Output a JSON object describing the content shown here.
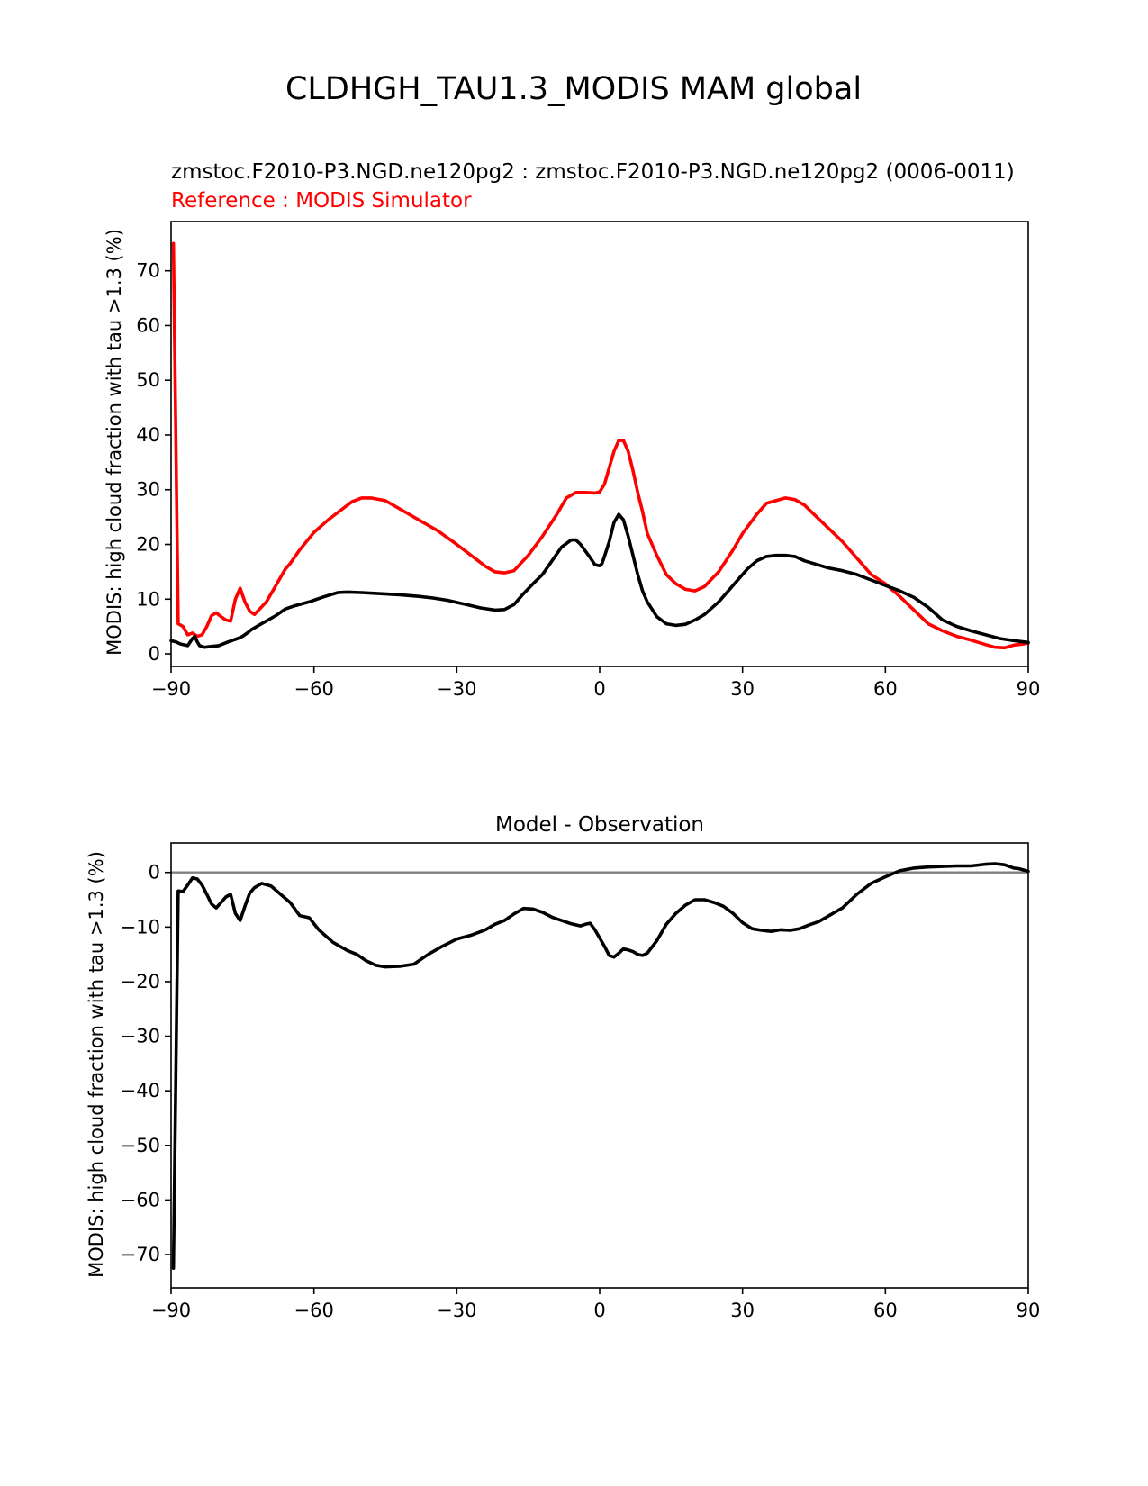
{
  "figure": {
    "title": "CLDHGH_TAU1.3_MODIS MAM global"
  },
  "chart_data": [
    {
      "type": "line",
      "test_label": "zmstoc.F2010-P3.NGD.ne120pg2 : zmstoc.F2010-P3.NGD.ne120pg2 (0006-0011)",
      "ref_label": "Reference : MODIS Simulator",
      "xlabel": "",
      "ylabel": "MODIS: high cloud fraction with tau >1.3 (%)",
      "xlim": [
        -90,
        90
      ],
      "ylim": [
        -2.3,
        79
      ],
      "xticks": [
        -90,
        -60,
        -30,
        0,
        30,
        60,
        90
      ],
      "xtick_labels": [
        "−90",
        "−60",
        "−30",
        "0",
        "30",
        "60",
        "90"
      ],
      "yticks": [
        0,
        10,
        20,
        30,
        40,
        50,
        60,
        70
      ],
      "ytick_labels": [
        "0",
        "10",
        "20",
        "30",
        "40",
        "50",
        "60",
        "70"
      ],
      "series": [
        {
          "name": "Reference",
          "color": "#ff0000",
          "x": [
            -89.5,
            -88.5,
            -87.5,
            -86.5,
            -85.5,
            -84.5,
            -83.5,
            -82.5,
            -81.5,
            -80.5,
            -79.5,
            -78.5,
            -77.5,
            -76.5,
            -75.5,
            -74.5,
            -73.5,
            -72.5,
            -70,
            -68,
            -66,
            -65,
            -63,
            -60,
            -57,
            -54,
            -52,
            -50,
            -48,
            -45,
            -42,
            -38,
            -34,
            -30,
            -27,
            -24,
            -22,
            -20,
            -18,
            -15,
            -12,
            -9,
            -7,
            -5,
            -3,
            -1,
            0,
            1,
            2,
            3,
            4,
            5,
            6,
            7,
            8,
            9,
            10,
            12,
            14,
            16,
            18,
            20,
            22,
            25,
            28,
            30,
            33,
            35,
            37,
            39,
            41,
            43,
            45,
            48,
            51,
            54,
            57,
            60,
            63,
            66,
            69,
            72,
            75,
            78,
            81,
            83,
            85,
            87,
            89,
            90
          ],
          "y": [
            75,
            5.5,
            5,
            3.5,
            3.8,
            3.2,
            3.5,
            5,
            7,
            7.5,
            6.8,
            6.2,
            6,
            10,
            12,
            9.5,
            7.8,
            7.2,
            9.5,
            12.5,
            15.5,
            16.5,
            19,
            22.2,
            24.5,
            26.5,
            27.8,
            28.5,
            28.5,
            28,
            26.5,
            24.5,
            22.5,
            20,
            18,
            16,
            15,
            14.8,
            15.2,
            18,
            21.5,
            25.5,
            28.5,
            29.5,
            29.5,
            29.4,
            29.6,
            31,
            34,
            37,
            39,
            39,
            37,
            33.5,
            29.5,
            26,
            22,
            18,
            14.5,
            12.8,
            11.8,
            11.5,
            12.3,
            15,
            19,
            22,
            25.5,
            27.5,
            28,
            28.5,
            28.2,
            27.2,
            25.5,
            23,
            20.5,
            17.5,
            14.5,
            12.8,
            10.5,
            8,
            5.5,
            4.2,
            3.2,
            2.5,
            1.7,
            1.2,
            1.1,
            1.6,
            1.8,
            2
          ]
        },
        {
          "name": "Test",
          "color": "#000000",
          "x": [
            -90,
            -89,
            -88,
            -86.5,
            -85.5,
            -85,
            -84.5,
            -84,
            -83,
            -82,
            -80,
            -78,
            -76,
            -75,
            -74,
            -73,
            -71,
            -68,
            -66,
            -64,
            -61,
            -58,
            -55,
            -53,
            -50,
            -46,
            -42,
            -38,
            -35,
            -32,
            -28,
            -25,
            -22,
            -20,
            -18,
            -16,
            -14,
            -12,
            -10,
            -8,
            -6,
            -5,
            -4,
            -3,
            -2,
            -1,
            0,
            0.5,
            1,
            2,
            3,
            4,
            5,
            6,
            7,
            8,
            9,
            10,
            12,
            14,
            16,
            18,
            20,
            22,
            25,
            28,
            31,
            33,
            35,
            37,
            39,
            41,
            43,
            45,
            48,
            51,
            54,
            57,
            60,
            63,
            66,
            69,
            72,
            75,
            78,
            81,
            84,
            87,
            90
          ],
          "y": [
            2.4,
            2.2,
            1.8,
            1.5,
            2.8,
            3.2,
            2.2,
            1.5,
            1.2,
            1.3,
            1.5,
            2.2,
            2.8,
            3.2,
            3.8,
            4.5,
            5.5,
            7,
            8.2,
            8.8,
            9.5,
            10.4,
            11.2,
            11.3,
            11.2,
            11,
            10.8,
            10.5,
            10.2,
            9.8,
            9,
            8.4,
            8,
            8.1,
            9,
            11,
            12.8,
            14.5,
            17,
            19.5,
            20.8,
            20.8,
            20,
            18.8,
            17.6,
            16.3,
            16.1,
            16.5,
            17.8,
            20.5,
            24,
            25.5,
            24.5,
            21.5,
            18,
            14.5,
            11.5,
            9.5,
            6.8,
            5.5,
            5.2,
            5.4,
            6.2,
            7.2,
            9.5,
            12.5,
            15.5,
            17,
            17.8,
            18,
            18,
            17.8,
            17,
            16.5,
            15.7,
            15.2,
            14.5,
            13.5,
            12.5,
            11.5,
            10.3,
            8.5,
            6.2,
            5,
            4.2,
            3.5,
            2.8,
            2.4,
            2.1
          ]
        }
      ]
    },
    {
      "type": "line",
      "title": "Model - Observation",
      "xlabel": "",
      "ylabel": "MODIS: high cloud fraction with tau >1.3 (%)",
      "xlim": [
        -90,
        90
      ],
      "ylim": [
        -76.1,
        5.4
      ],
      "xticks": [
        -90,
        -60,
        -30,
        0,
        30,
        60,
        90
      ],
      "xtick_labels": [
        "−90",
        "−60",
        "−30",
        "0",
        "30",
        "60",
        "90"
      ],
      "yticks": [
        0,
        -10,
        -20,
        -30,
        -40,
        -50,
        -60,
        -70
      ],
      "ytick_labels": [
        "0",
        "−10",
        "−20",
        "−30",
        "−40",
        "−50",
        "−60",
        "−70"
      ],
      "zero_line_color": "#808080",
      "series": [
        {
          "name": "Model - Observation",
          "color": "#000000",
          "x": [
            -89.5,
            -88.5,
            -87.5,
            -86.5,
            -85.5,
            -84.5,
            -83.5,
            -82.5,
            -81.5,
            -80.5,
            -79.5,
            -78.5,
            -77.5,
            -76.5,
            -75.5,
            -74.5,
            -73.5,
            -72.5,
            -71,
            -69,
            -67,
            -65,
            -63,
            -61,
            -59,
            -56,
            -53,
            -51,
            -49,
            -47,
            -45,
            -42,
            -39,
            -36,
            -33,
            -30,
            -27,
            -24,
            -22,
            -20,
            -18,
            -16,
            -14,
            -12,
            -10,
            -8,
            -6,
            -4,
            -3,
            -2,
            -1,
            0,
            1,
            2,
            3,
            4,
            5,
            6,
            7,
            8,
            9,
            10,
            12,
            14,
            16,
            18,
            20,
            22,
            24,
            26,
            28,
            30,
            32,
            34,
            36,
            38,
            40,
            42,
            44,
            46,
            48,
            51,
            54,
            57,
            60,
            63,
            66,
            69,
            72,
            75,
            78,
            81,
            83,
            85,
            87,
            88,
            90
          ],
          "y": [
            -72.5,
            -3.4,
            -3.5,
            -2.3,
            -1,
            -1.2,
            -2.3,
            -4,
            -5.8,
            -6.5,
            -5.5,
            -4.5,
            -4,
            -7.5,
            -8.8,
            -6.2,
            -3.8,
            -2.8,
            -2,
            -2.5,
            -4,
            -5.5,
            -7.9,
            -8.3,
            -10.5,
            -12.8,
            -14.3,
            -15,
            -16.2,
            -17,
            -17.3,
            -17.2,
            -16.8,
            -15,
            -13.5,
            -12.2,
            -11.5,
            -10.5,
            -9.5,
            -8.8,
            -7.6,
            -6.6,
            -6.7,
            -7.3,
            -8.2,
            -8.8,
            -9.4,
            -9.8,
            -9.5,
            -9.3,
            -10.5,
            -12,
            -13.5,
            -15.2,
            -15.5,
            -14.8,
            -14,
            -14.2,
            -14.5,
            -15,
            -15.2,
            -14.8,
            -12.5,
            -9.5,
            -7.5,
            -6,
            -5,
            -5,
            -5.5,
            -6.2,
            -7.5,
            -9.2,
            -10.3,
            -10.6,
            -10.8,
            -10.5,
            -10.6,
            -10.3,
            -9.6,
            -9,
            -8,
            -6.5,
            -4,
            -2,
            -0.8,
            0.3,
            0.8,
            1,
            1.1,
            1.2,
            1.2,
            1.5,
            1.6,
            1.4,
            0.8,
            0.7,
            0.2
          ]
        }
      ]
    }
  ]
}
